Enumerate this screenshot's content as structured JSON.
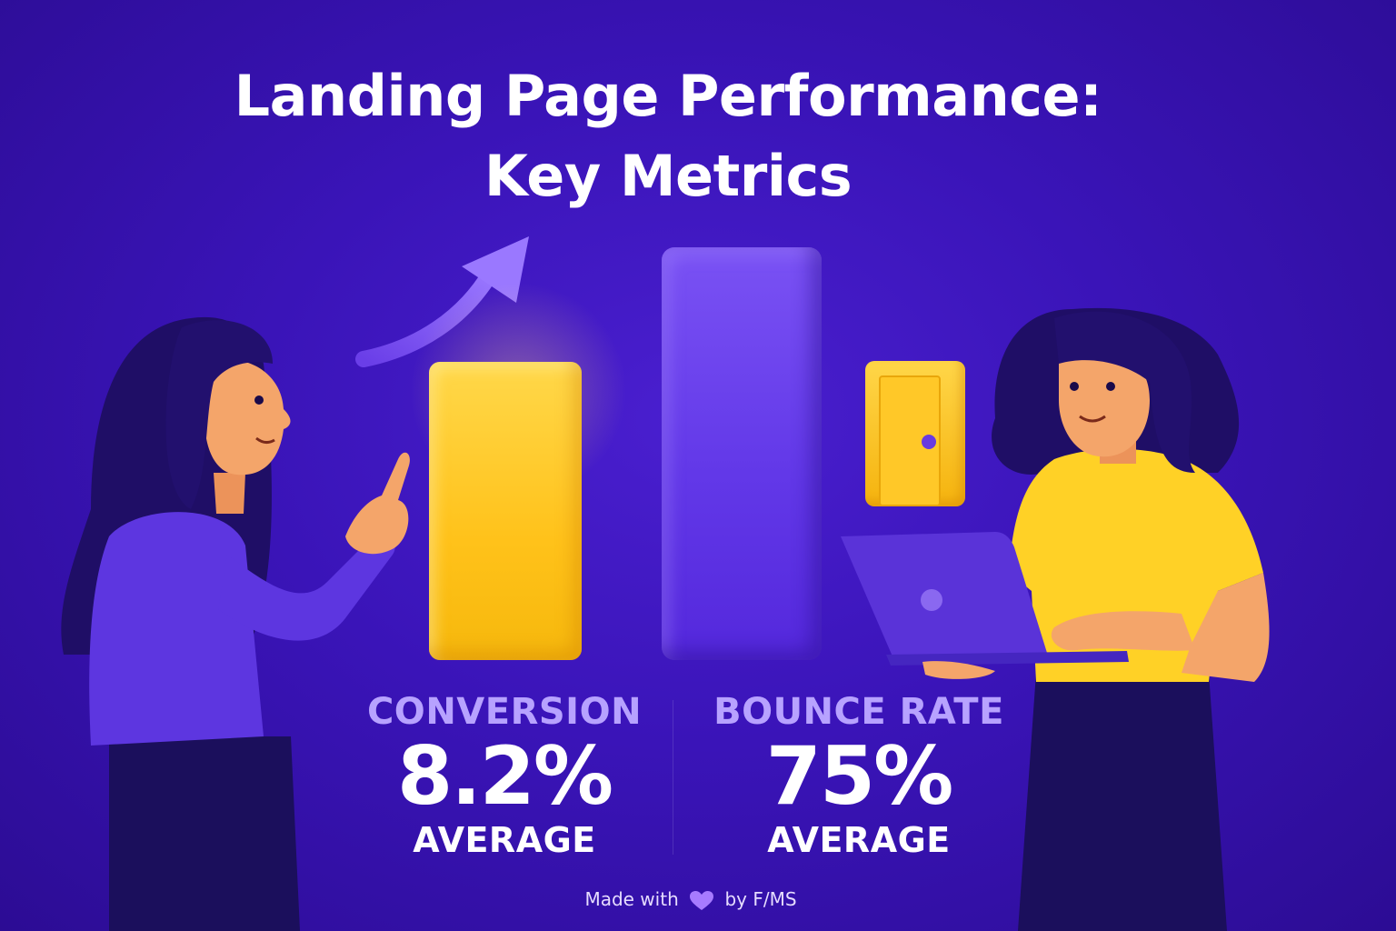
{
  "title": {
    "line1": "Landing Page Performance:",
    "line2": "Key Metrics"
  },
  "metrics": [
    {
      "label": "CONVERSION",
      "value": "8.2%",
      "sub": "AVERAGE"
    },
    {
      "label": "BOUNCE RATE",
      "value": "75%",
      "sub": "AVERAGE"
    }
  ],
  "footer": {
    "prefix": "Made with",
    "suffix": "by F/MS",
    "icon": "heart-icon"
  },
  "colors": {
    "background": "#3a14b8",
    "accent_yellow": "#ffc21a",
    "accent_purple": "#6238e8",
    "label_lavender": "#b7a2ff"
  },
  "icons": [
    "trend-arrow-icon",
    "door-icon",
    "heart-icon"
  ]
}
